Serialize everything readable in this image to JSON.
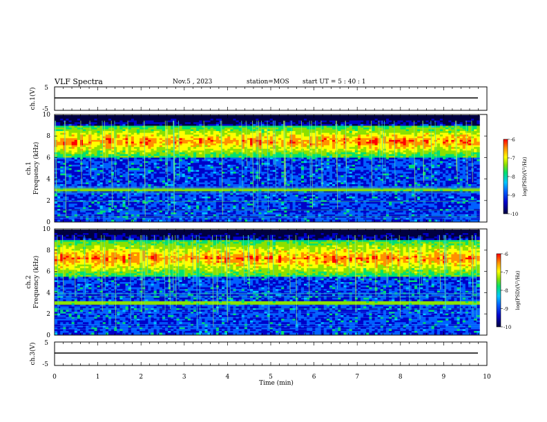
{
  "header": {
    "title": "VLF Spectra",
    "date": "Nov.5 , 2023",
    "station": "station=MOS",
    "start_ut": "start UT = 5 : 40 : 1"
  },
  "chart_data": [
    {
      "type": "line",
      "panel": "ch.1(V)",
      "ylabel": "ch.1(V)",
      "ylim": [
        -5,
        5
      ],
      "yticks": [
        "5",
        "-5"
      ],
      "x": [
        0,
        10
      ],
      "y": [
        -1.2,
        -1.2
      ]
    },
    {
      "type": "heatmap",
      "panel": "ch.1 Frequency (kHz)",
      "ylabel": "ch.1\nFrequency (kHz)",
      "ylim": [
        0,
        10
      ],
      "yticks": [
        "0",
        "2",
        "4",
        "6",
        "8",
        "10"
      ],
      "xlim": [
        0,
        9.83
      ],
      "colorbar": {
        "label": "log(PSD)(V²/Hz)",
        "range": [
          -10,
          -6
        ],
        "ticks": [
          "-6",
          "-7",
          "-8",
          "-9",
          "-10"
        ]
      },
      "features": {
        "broadband_emission_band_kHz": [
          6,
          9
        ],
        "persistent_line_kHz": 3.0
      }
    },
    {
      "type": "heatmap",
      "panel": "ch.2 Frequency (kHz)",
      "ylabel": "ch.2\nFrequency (kHz)",
      "ylim": [
        0,
        10
      ],
      "yticks": [
        "0",
        "2",
        "4",
        "6",
        "8",
        "10"
      ],
      "xlim": [
        0,
        9.83
      ],
      "colorbar": {
        "label": "log(PSD)(V²/Hz)",
        "range": [
          -10,
          -6
        ],
        "ticks": [
          "-6",
          "-7",
          "-8",
          "-9",
          "-10"
        ]
      },
      "features": {
        "broadband_emission_band_kHz": [
          5.5,
          9
        ],
        "persistent_line_kHz": 3.0
      }
    },
    {
      "type": "line",
      "panel": "ch.3(V)",
      "ylabel": "ch.3(V)",
      "ylim": [
        -5,
        5
      ],
      "yticks": [
        "5",
        "-5"
      ],
      "x": [
        0,
        10
      ],
      "y": [
        -1.2,
        -1.2
      ]
    }
  ],
  "xaxis": {
    "label": "Time (min)",
    "ticks": [
      "0",
      "1",
      "2",
      "3",
      "4",
      "5",
      "6",
      "7",
      "8",
      "9",
      "10"
    ],
    "range": [
      0,
      10
    ]
  },
  "colormap": [
    "#000040",
    "#0000c8",
    "#0060ff",
    "#00c8ff",
    "#00e070",
    "#8ce000",
    "#ffff00",
    "#ff9000",
    "#ff0000"
  ]
}
